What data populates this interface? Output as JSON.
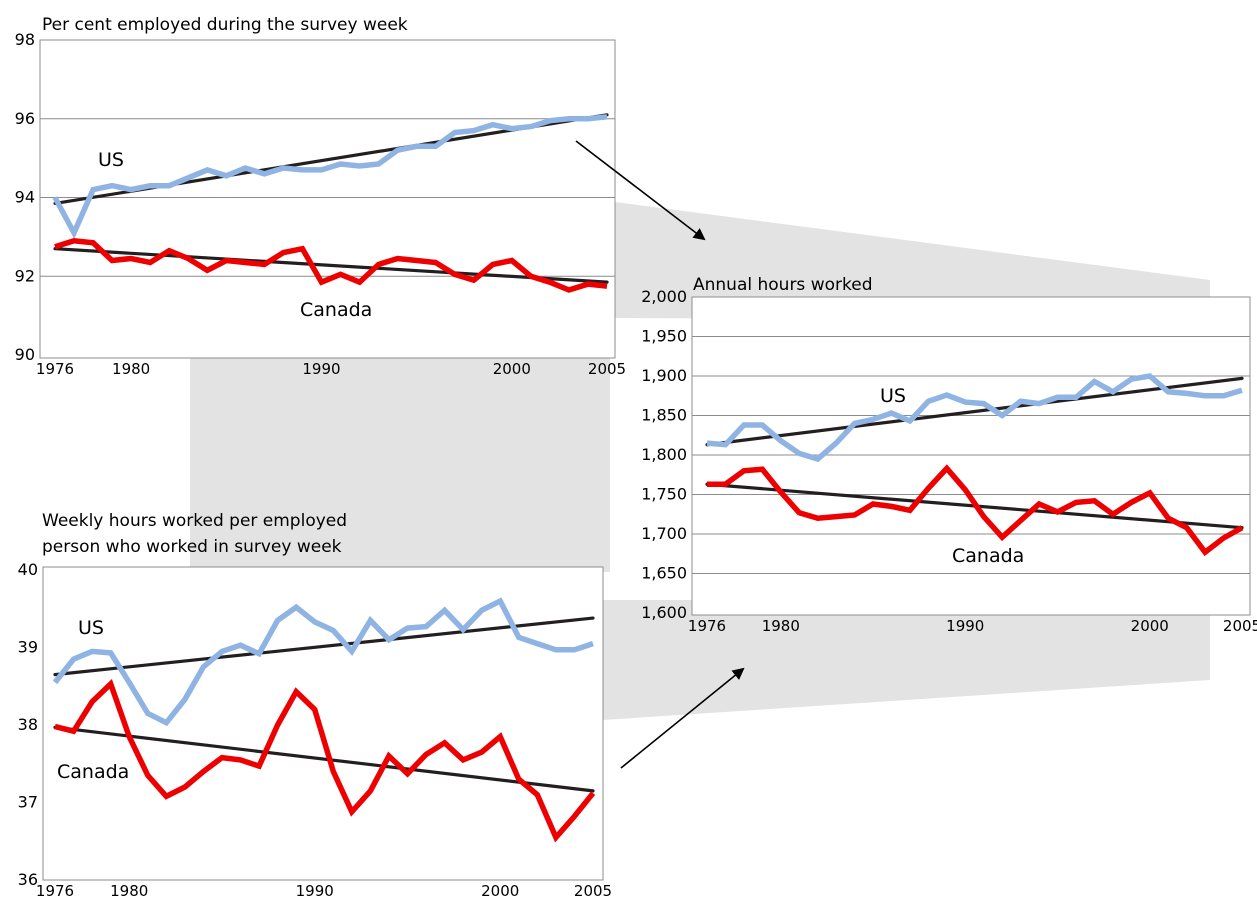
{
  "colors": {
    "us": "#8fb4e3",
    "canada": "#ee0000",
    "trend": "#231f20",
    "connector": "#e3e3e3",
    "grid": "#8c8c8c"
  },
  "chart_data": [
    {
      "id": "employed",
      "type": "line",
      "title": "Per cent employed during the survey week",
      "title2": "",
      "xlabel": "",
      "ylabel": "",
      "xlim": [
        1976,
        2005
      ],
      "ylim": [
        90,
        98
      ],
      "yticks": [
        90,
        92,
        94,
        96,
        98
      ],
      "ytick_labels": [
        "90",
        "92",
        "94",
        "96",
        "98"
      ],
      "xticks": [
        1976,
        1980,
        1990,
        2000,
        2005
      ],
      "xtick_labels": [
        "1976",
        "1980",
        "1990",
        "2000",
        "2005"
      ],
      "grid": true,
      "x": [
        1976,
        1977,
        1978,
        1979,
        1980,
        1981,
        1982,
        1983,
        1984,
        1985,
        1986,
        1987,
        1988,
        1989,
        1990,
        1991,
        1992,
        1993,
        1994,
        1995,
        1996,
        1997,
        1998,
        1999,
        2000,
        2001,
        2002,
        2003,
        2004,
        2005
      ],
      "series": [
        {
          "name": "US",
          "values": [
            94.0,
            93.1,
            94.2,
            94.3,
            94.2,
            94.3,
            94.3,
            94.5,
            94.7,
            94.55,
            94.75,
            94.6,
            94.75,
            94.7,
            94.7,
            94.85,
            94.8,
            94.85,
            95.2,
            95.3,
            95.3,
            95.65,
            95.7,
            95.85,
            95.75,
            95.8,
            95.95,
            96.0,
            96.0,
            96.05
          ]
        },
        {
          "name": "Canada",
          "values": [
            92.75,
            92.9,
            92.85,
            92.4,
            92.45,
            92.35,
            92.65,
            92.45,
            92.15,
            92.4,
            92.35,
            92.3,
            92.6,
            92.7,
            91.85,
            92.05,
            91.85,
            92.3,
            92.45,
            92.4,
            92.35,
            92.05,
            91.9,
            92.3,
            92.4,
            92.0,
            91.85,
            91.65,
            91.8,
            91.75
          ]
        }
      ],
      "trend": [
        {
          "name": "US trend",
          "from": [
            1976,
            93.85
          ],
          "to": [
            2005,
            96.1
          ]
        },
        {
          "name": "Canada trend",
          "from": [
            1976,
            92.7
          ],
          "to": [
            2005,
            91.85
          ]
        }
      ]
    },
    {
      "id": "annual",
      "type": "line",
      "title": "Annual hours worked",
      "title2": "",
      "xlabel": "",
      "ylabel": "",
      "xlim": [
        1976,
        2005
      ],
      "ylim": [
        1600,
        2000
      ],
      "yticks": [
        1600,
        1650,
        1700,
        1750,
        1800,
        1850,
        1900,
        1950,
        2000
      ],
      "ytick_labels": [
        "1,600",
        "1,650",
        "1,700",
        "1,750",
        "1,800",
        "1,850",
        "1,900",
        "1,950",
        "2,000"
      ],
      "xticks": [
        1976,
        1980,
        1990,
        2000,
        2005
      ],
      "xtick_labels": [
        "1976",
        "1980",
        "1990",
        "2000",
        "2005"
      ],
      "grid": true,
      "x": [
        1976,
        1977,
        1978,
        1979,
        1980,
        1981,
        1982,
        1983,
        1984,
        1985,
        1986,
        1987,
        1988,
        1989,
        1990,
        1991,
        1992,
        1993,
        1994,
        1995,
        1996,
        1997,
        1998,
        1999,
        2000,
        2001,
        2002,
        2003,
        2004,
        2005
      ],
      "series": [
        {
          "name": "US",
          "values": [
            1815,
            1813,
            1838,
            1838,
            1818,
            1802,
            1795,
            1815,
            1840,
            1845,
            1853,
            1843,
            1868,
            1876,
            1867,
            1865,
            1850,
            1868,
            1865,
            1873,
            1873,
            1893,
            1880,
            1896,
            1900,
            1880,
            1878,
            1875,
            1875,
            1882
          ]
        },
        {
          "name": "Canada",
          "values": [
            1763,
            1763,
            1780,
            1782,
            1753,
            1727,
            1720,
            1722,
            1724,
            1738,
            1735,
            1730,
            1758,
            1783,
            1756,
            1722,
            1696,
            1717,
            1738,
            1728,
            1740,
            1742,
            1725,
            1740,
            1752,
            1720,
            1708,
            1677,
            1695,
            1708
          ]
        }
      ],
      "trend": [
        {
          "name": "US trend",
          "from": [
            1976,
            1813
          ],
          "to": [
            2005,
            1897
          ]
        },
        {
          "name": "Canada trend",
          "from": [
            1976,
            1763
          ],
          "to": [
            2005,
            1708
          ]
        }
      ]
    },
    {
      "id": "weekly",
      "type": "line",
      "title": "Weekly hours worked per employed",
      "title2": "person who worked in survey week",
      "xlabel": "",
      "ylabel": "",
      "xlim": [
        1976,
        2005
      ],
      "ylim": [
        36,
        40
      ],
      "yticks": [
        36,
        37,
        38,
        39,
        40
      ],
      "ytick_labels": [
        "36",
        "37",
        "38",
        "39",
        "40"
      ],
      "xticks": [
        1976,
        1980,
        1990,
        2000,
        2005
      ],
      "xtick_labels": [
        "1976",
        "1980",
        "1990",
        "2000",
        "2005"
      ],
      "grid": false,
      "x": [
        1976,
        1977,
        1978,
        1979,
        1980,
        1981,
        1982,
        1983,
        1984,
        1985,
        1986,
        1987,
        1988,
        1989,
        1990,
        1991,
        1992,
        1993,
        1994,
        1995,
        1996,
        1997,
        1998,
        1999,
        2000,
        2001,
        2002,
        2003,
        2004,
        2005
      ],
      "series": [
        {
          "name": "US",
          "values": [
            38.55,
            38.85,
            38.95,
            38.93,
            38.55,
            38.15,
            38.03,
            38.33,
            38.75,
            38.95,
            39.03,
            38.92,
            39.35,
            39.52,
            39.33,
            39.22,
            38.95,
            39.35,
            39.1,
            39.25,
            39.27,
            39.48,
            39.23,
            39.48,
            39.6,
            39.13,
            39.05,
            38.97,
            38.97,
            39.05
          ]
        },
        {
          "name": "Canada",
          "values": [
            37.98,
            37.92,
            38.3,
            38.53,
            37.85,
            37.35,
            37.08,
            37.2,
            37.4,
            37.58,
            37.55,
            37.47,
            38.0,
            38.43,
            38.2,
            37.4,
            36.88,
            37.15,
            37.6,
            37.37,
            37.62,
            37.77,
            37.55,
            37.65,
            37.85,
            37.3,
            37.1,
            36.55,
            36.82,
            37.12
          ]
        }
      ],
      "trend": [
        {
          "name": "US trend",
          "from": [
            1976,
            38.65
          ],
          "to": [
            2005,
            39.38
          ]
        },
        {
          "name": "Canada trend",
          "from": [
            1976,
            37.97
          ],
          "to": [
            2005,
            37.15
          ]
        }
      ]
    }
  ]
}
